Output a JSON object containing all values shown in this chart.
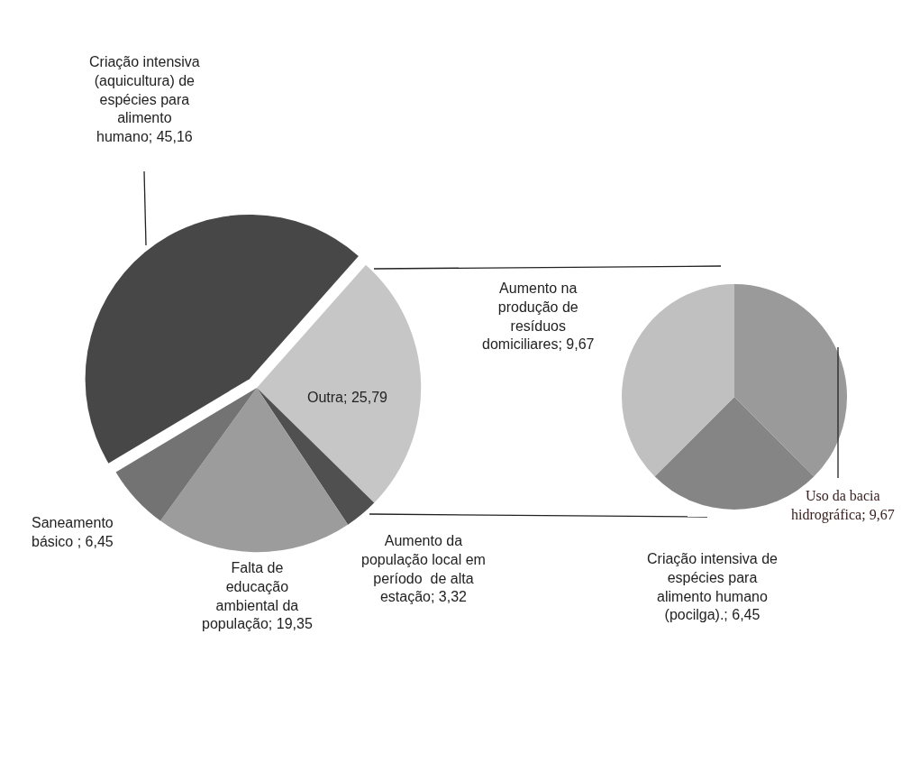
{
  "chart_data": [
    {
      "type": "pie",
      "categories": [
        "Outra",
        "Aumento da população local em período  de alta estação",
        "Falta de educação ambiental da população",
        "Saneamento básico ",
        "Criação intensiva (aquicultura) de espécies para alimento humano"
      ],
      "values": [
        25.79,
        3.32,
        19.35,
        6.45,
        45.16
      ],
      "value_labels": [
        "25,79",
        "3,32",
        "19,35",
        "6,45",
        "45,16"
      ],
      "colors": [
        "#c6c6c6",
        "#505050",
        "#9c9c9c",
        "#737373",
        "#474747"
      ],
      "legend": false
    },
    {
      "type": "pie",
      "categories": [
        "Uso da bacia hidrográfica",
        "Criação intensiva de espécies para alimento humano (pocilga).",
        "Aumento na produção de resíduos domiciliares"
      ],
      "values": [
        9.67,
        6.45,
        9.67
      ],
      "value_labels": [
        "9,67",
        "6,45",
        "9,67"
      ],
      "colors": [
        "#9a9a9a",
        "#858585",
        "#c0c0c0"
      ],
      "legend": false
    }
  ]
}
